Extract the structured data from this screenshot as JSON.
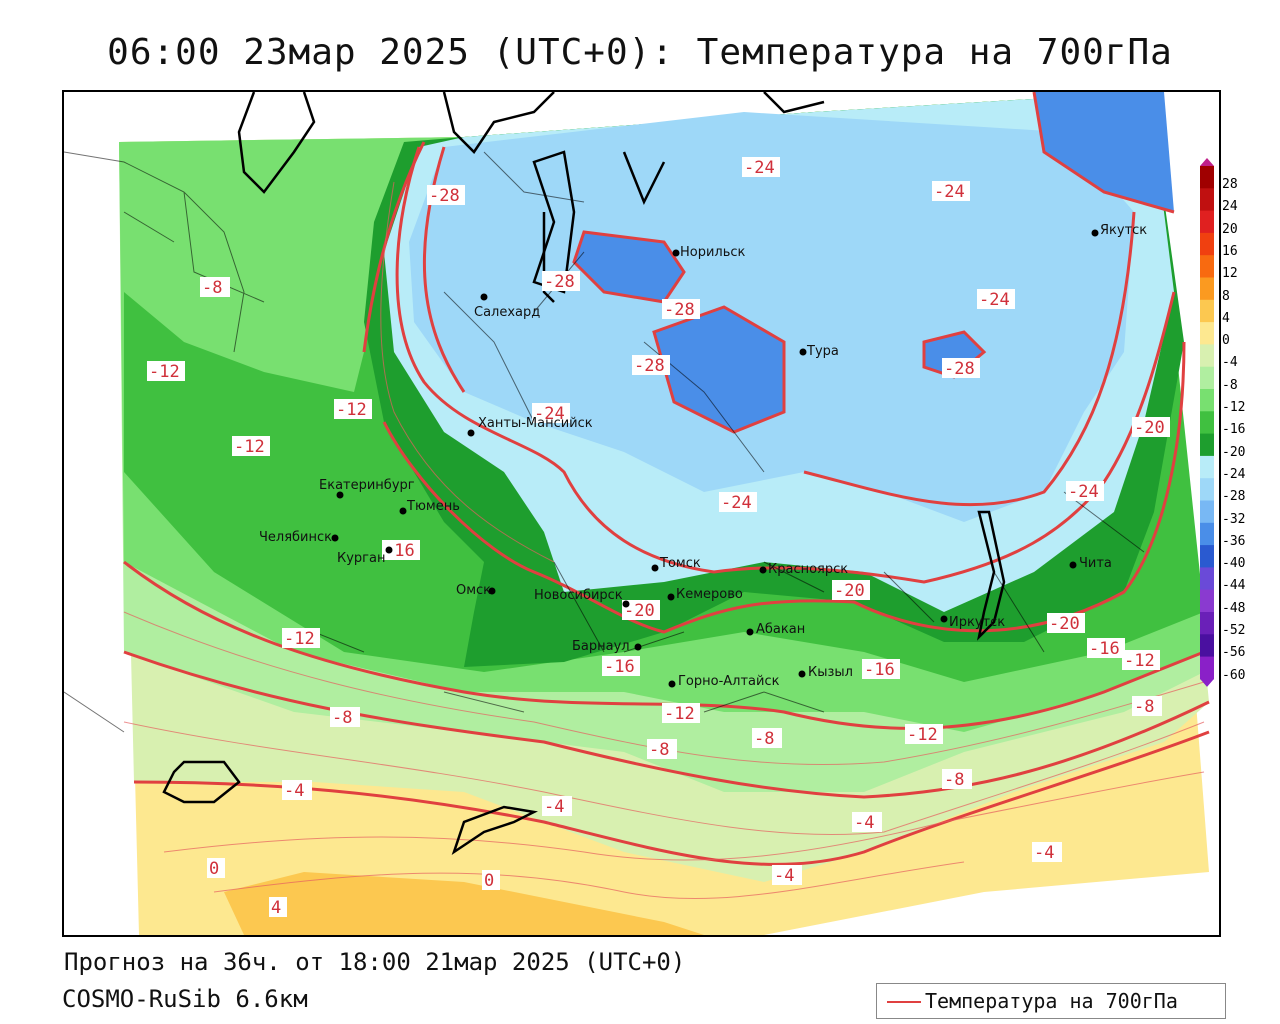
{
  "title": "06:00 23мар 2025 (UTC+0): Температура на 700гПа",
  "footer": {
    "forecast": "Прогноз на 36ч. от 18:00 21мар 2025 (UTC+0)",
    "model": "COSMO-RuSib 6.6км"
  },
  "legend": {
    "label": "Температура на 700гПа"
  },
  "colorbar": {
    "ticks": [
      "28",
      "24",
      "20",
      "16",
      "12",
      "8",
      "4",
      "0",
      "-4",
      "-8",
      "-12",
      "-16",
      "-20",
      "-24",
      "-28",
      "-32",
      "-36",
      "-40",
      "-44",
      "-48",
      "-52",
      "-56",
      "-60"
    ],
    "colors": [
      "#a00000",
      "#c01010",
      "#e02020",
      "#f04010",
      "#f86a10",
      "#fb9a20",
      "#fcc850",
      "#fde890",
      "#d8f0b0",
      "#b0eea0",
      "#78e070",
      "#40c040",
      "#1e9e2e",
      "#b8ecf8",
      "#9ed8f8",
      "#78b8f4",
      "#4a8ee8",
      "#2a5ad0",
      "#6a4ad8",
      "#8a3ad0",
      "#6a20b8",
      "#4a10a0",
      "#8a20c8"
    ]
  },
  "cities": [
    {
      "name": "Салехард"
    },
    {
      "name": "Норильск"
    },
    {
      "name": "Тура"
    },
    {
      "name": "Якутск"
    },
    {
      "name": "Ханты-Мансийск"
    },
    {
      "name": "Екатеринбург"
    },
    {
      "name": "Тюмень"
    },
    {
      "name": "Челябинск"
    },
    {
      "name": "Курган"
    },
    {
      "name": "Омск"
    },
    {
      "name": "Новосибирск"
    },
    {
      "name": "Томск"
    },
    {
      "name": "Кемерово"
    },
    {
      "name": "Барнаул"
    },
    {
      "name": "Красноярск"
    },
    {
      "name": "Абакан"
    },
    {
      "name": "Горно-Алтайск"
    },
    {
      "name": "Кызыл"
    },
    {
      "name": "Иркутск"
    },
    {
      "name": "Чита"
    }
  ],
  "isoline_labels": [
    "-24",
    "-24",
    "-24",
    "-28",
    "-28",
    "-28",
    "-28",
    "-28",
    "-24",
    "-8",
    "-12",
    "-12",
    "-12",
    "-16",
    "-24",
    "-20",
    "-20",
    "-16",
    "-16",
    "-20",
    "-16",
    "-12",
    "-12",
    "-12",
    "-8",
    "-8",
    "-8",
    "-4",
    "-4",
    "-4",
    "-4",
    "-4",
    "0",
    "0",
    "4",
    "-8",
    "-12",
    "-8",
    "-24",
    "-20"
  ]
}
